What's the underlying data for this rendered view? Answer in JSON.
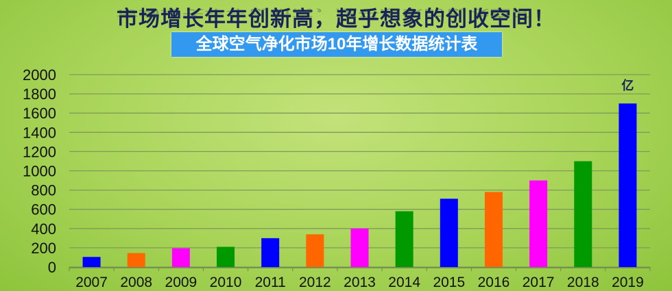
{
  "header": {
    "title": "市场增长年年创新高，超乎想象的创收空间！"
  },
  "chart_data": {
    "type": "bar",
    "title": "全球空气净化市场10年增长数据统计表",
    "unit_label": "亿",
    "categories": [
      "2007",
      "2008",
      "2009",
      "2010",
      "2011",
      "2012",
      "2013",
      "2014",
      "2015",
      "2016",
      "2017",
      "2018",
      "2019"
    ],
    "values": [
      105,
      145,
      195,
      210,
      300,
      340,
      400,
      580,
      710,
      780,
      900,
      1100,
      1700
    ],
    "colors": [
      "#0000ff",
      "#ff6600",
      "#ff00ff",
      "#009900",
      "#0000ff",
      "#ff6600",
      "#ff00ff",
      "#009900",
      "#0000ff",
      "#ff6600",
      "#ff00ff",
      "#009900",
      "#0000ff"
    ],
    "ylim": [
      0,
      2000
    ],
    "yticks": [
      "0",
      "200",
      "400",
      "600",
      "800",
      "1000",
      "1200",
      "1400",
      "1600",
      "1800",
      "2000"
    ],
    "grid": true,
    "legend": "none"
  }
}
